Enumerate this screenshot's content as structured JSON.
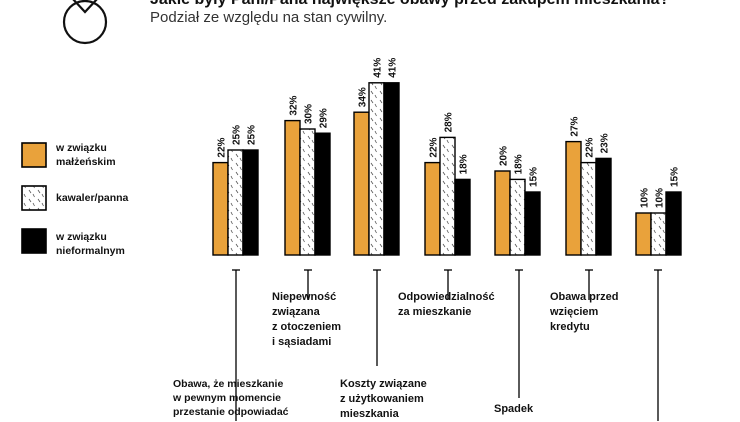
{
  "chart_data": {
    "type": "bar",
    "title": "Jakie były Pani/Pana największe obawy przed zakupem mieszkania?",
    "subtitle": "Podział ze względu na stan cywilny.",
    "categories": [
      "Obawa, że mieszkanie\nw pewnym momencie\nprzestanie odpowiadać",
      "Niepewność\nzwiązana\nz otoczeniem\ni sąsiadami",
      "Koszty związane\nz użytkowaniem\nmieszkania",
      "Odpowiedzialność\nza mieszkanie",
      "Spadek",
      "Obawa przed\nwzięciem\nkredytu",
      ""
    ],
    "series": [
      {
        "name": "w związku\nmałżeńskim",
        "values": [
          22,
          32,
          34,
          22,
          20,
          27,
          10
        ],
        "labels": [
          "22%",
          "32%",
          "34%",
          "22%",
          "20%",
          "27%",
          "10%"
        ],
        "color": "#E9A23B"
      },
      {
        "name": "kawaler/panna",
        "values": [
          25,
          30,
          41,
          28,
          18,
          22,
          10
        ],
        "labels": [
          "25%",
          "30%",
          "41%",
          "28%",
          "18%",
          "22%",
          "10%"
        ],
        "color": "#ffffff"
      },
      {
        "name": "w związku\nnieformalnym",
        "values": [
          25,
          29,
          41,
          18,
          15,
          23,
          15
        ],
        "labels": [
          "25%",
          "29%",
          "41%",
          "18%",
          "15%",
          "23%",
          "15%"
        ],
        "color": "#000000"
      }
    ],
    "legend_position": "left",
    "grid": false
  }
}
